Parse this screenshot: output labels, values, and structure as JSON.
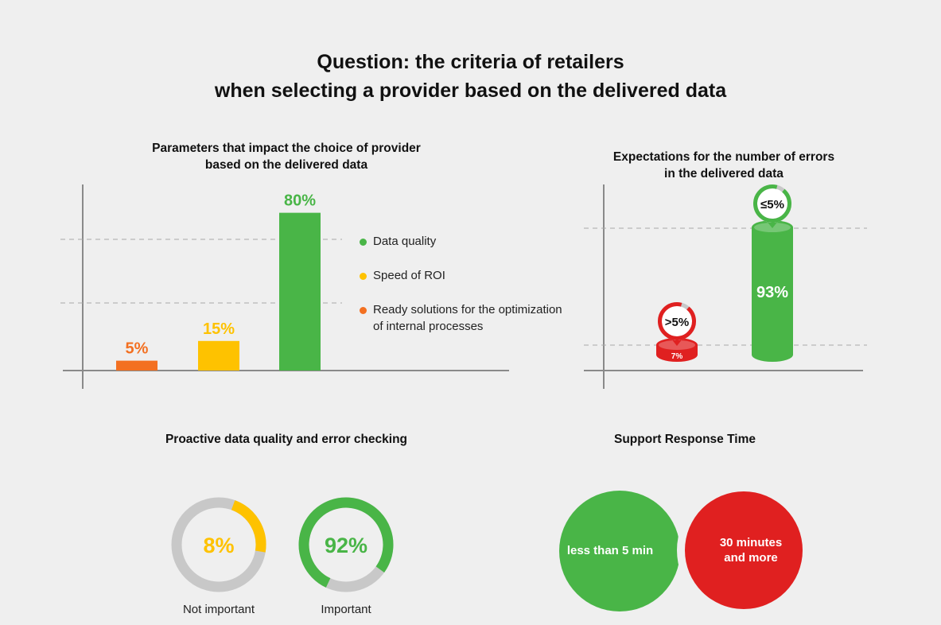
{
  "title": {
    "line1": "Question: the criteria of retailers",
    "line2": "when selecting a provider based on the delivered data"
  },
  "colors": {
    "green": "#49b547",
    "yellow": "#fec200",
    "orange": "#f37021",
    "red": "#e02020",
    "grey": "#c8c8c8"
  },
  "chart_data": [
    {
      "type": "bar",
      "title_line1": "Parameters that impact the choice of provider",
      "title_line2": "based on the delivered data",
      "categories": [
        "Ready solutions for the optimization of internal processes",
        "Speed of ROI",
        "Data quality"
      ],
      "values": [
        5,
        15,
        80
      ],
      "value_labels": [
        "5%",
        "15%",
        "80%"
      ],
      "colors": [
        "#f37021",
        "#fec200",
        "#49b547"
      ],
      "legend": [
        {
          "label_line1": "Data quality",
          "label_line2": "",
          "color": "#49b547"
        },
        {
          "label_line1": "Speed of ROI",
          "label_line2": "",
          "color": "#fec200"
        },
        {
          "label_line1": "Ready solutions for the optimization",
          "label_line2": "of internal processes",
          "color": "#f37021"
        }
      ],
      "ylim": [
        0,
        100
      ],
      "grid": "dashed",
      "legend_position": "right"
    },
    {
      "type": "bar",
      "title_line1": "Expectations for the number of errors",
      "title_line2": "in the delivered data",
      "categories": [
        ">5%",
        "≤5%"
      ],
      "values": [
        7,
        93
      ],
      "value_labels": [
        "7%",
        "93%"
      ],
      "colors": [
        "#e02020",
        "#49b547"
      ],
      "ylim": [
        0,
        100
      ],
      "grid": "dashed"
    },
    {
      "type": "pie",
      "title": "Proactive data quality and error checking",
      "slices": [
        {
          "label": "Not important",
          "value": 8,
          "value_label": "8%",
          "color": "#fec200"
        },
        {
          "label": "Important",
          "value": 92,
          "value_label": "92%",
          "color": "#49b547"
        }
      ]
    },
    {
      "type": "other",
      "title": "Support Response Time",
      "items": [
        {
          "label": "less than 5 min",
          "color": "#49b547"
        },
        {
          "label_line1": "30 minutes",
          "label_line2": "and more",
          "color": "#e02020"
        }
      ]
    }
  ]
}
